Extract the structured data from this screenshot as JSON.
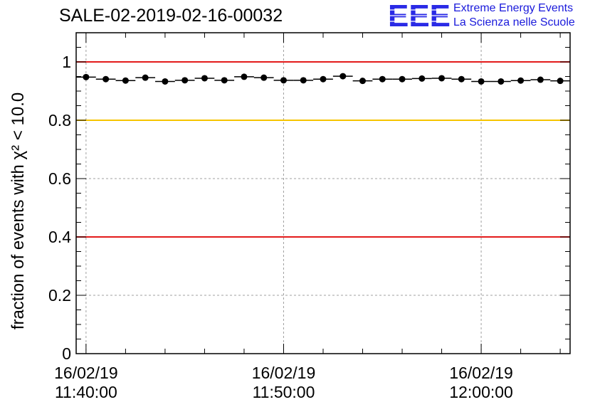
{
  "header": {
    "title": "SALE-02-2019-02-16-00032",
    "logo": "EEE",
    "logo_line1": "Extreme Energy Events",
    "logo_line2": "La Scienza nelle Scuole"
  },
  "chart_data": {
    "type": "scatter",
    "title": "SALE-02-2019-02-16-00032",
    "xlabel": "",
    "ylabel": "fraction of events with χ² < 10.0",
    "xlim_minutes": [
      -0.5,
      24.5
    ],
    "ylim": [
      0,
      1.1
    ],
    "y_ticks": [
      0,
      0.2,
      0.4,
      0.6,
      0.8,
      1
    ],
    "y_tick_labels": [
      "0",
      "0.2",
      "0.4",
      "0.6",
      "0.8",
      "1"
    ],
    "x_ticks_minutes": [
      0,
      10,
      20
    ],
    "x_tick_labels": [
      {
        "date": "16/02/19",
        "time": "11:40:00"
      },
      {
        "date": "16/02/19",
        "time": "11:50:00"
      },
      {
        "date": "16/02/19",
        "time": "12:00:00"
      }
    ],
    "grid": true,
    "bin_width_minutes": 1,
    "x_minutes": [
      0,
      1,
      2,
      3,
      4,
      5,
      6,
      7,
      8,
      9,
      10,
      11,
      12,
      13,
      14,
      15,
      16,
      17,
      18,
      19,
      20,
      21,
      22,
      23,
      24
    ],
    "values": [
      0.948,
      0.941,
      0.936,
      0.946,
      0.933,
      0.937,
      0.944,
      0.937,
      0.949,
      0.946,
      0.937,
      0.937,
      0.941,
      0.951,
      0.935,
      0.941,
      0.941,
      0.943,
      0.944,
      0.941,
      0.933,
      0.933,
      0.936,
      0.939,
      0.935
    ],
    "reference_lines": [
      {
        "y": 1.0,
        "color": "#e31b1b"
      },
      {
        "y": 0.8,
        "color": "#f6c400"
      },
      {
        "y": 0.4,
        "color": "#e31b1b"
      }
    ]
  }
}
